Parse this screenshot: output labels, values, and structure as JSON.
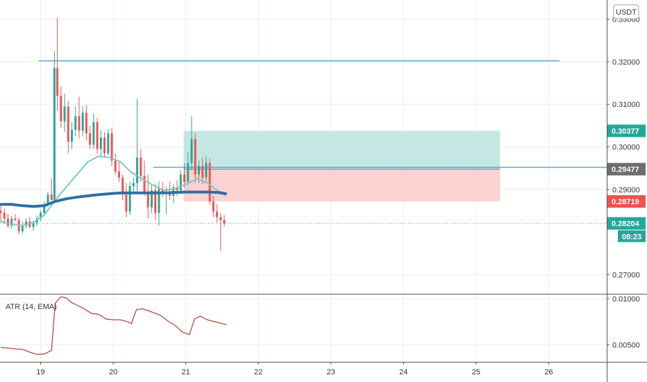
{
  "colors": {
    "up": "#26a69a",
    "down": "#ef5350",
    "ma_fast": "#7ec8c8",
    "ma_slow": "#2e6fa3",
    "atr": "#b8463e",
    "target_zone": "#b2dfdb",
    "stop_zone": "#fbc7c7",
    "level_line": "#2e8fc4",
    "grid": "#e8eef2",
    "border": "#555555"
  },
  "currency_badge": "USDT",
  "chart_data": [
    {
      "type": "candlestick",
      "y_ticks": [
        "0.33000",
        "0.32000",
        "0.31000",
        "0.30000",
        "0.29000",
        "0.27000"
      ],
      "y_tick_values": [
        0.33,
        0.32,
        0.31,
        0.3,
        0.29,
        0.27
      ],
      "ylim": [
        0.2655,
        0.3345
      ],
      "x_ticks": [
        "19",
        "20",
        "21",
        "22",
        "23",
        "24",
        "25",
        "26"
      ],
      "x_tick_values": [
        19,
        20,
        21,
        22,
        23,
        24,
        25,
        26
      ],
      "xlim": [
        18.44,
        26.8
      ],
      "price_tags": [
        {
          "label": "0.30377",
          "value": 0.30377,
          "color": "#26a69a"
        },
        {
          "label": "0.29477",
          "value": 0.29477,
          "color": "#6d6d6d"
        },
        {
          "label": "0.28719",
          "value": 0.28719,
          "color": "#ef5350"
        },
        {
          "label": "0.28204",
          "value": 0.28204,
          "color": "#26a69a"
        }
      ],
      "countdown": "08:23",
      "horizontal_levels": [
        {
          "value": 0.3202,
          "x_start": 18.97,
          "x_end": 26.15
        },
        {
          "value": 0.2952,
          "x_start": 20.55,
          "x_end": 26.8
        }
      ],
      "position_zone": {
        "x_start": 20.97,
        "x_end": 25.33,
        "entry": 0.29477,
        "target": 0.30377,
        "stop": 0.28719
      },
      "candles": [
        [
          18.45,
          0.285,
          0.2865,
          0.2823,
          0.2845
        ],
        [
          18.5,
          0.2845,
          0.2855,
          0.282,
          0.2832
        ],
        [
          18.55,
          0.2832,
          0.2843,
          0.281,
          0.2815
        ],
        [
          18.6,
          0.2815,
          0.2838,
          0.2808,
          0.2832
        ],
        [
          18.65,
          0.2832,
          0.2842,
          0.2825,
          0.2828
        ],
        [
          18.7,
          0.2828,
          0.2834,
          0.2795,
          0.2802
        ],
        [
          18.75,
          0.2802,
          0.2825,
          0.2797,
          0.2815
        ],
        [
          18.8,
          0.2815,
          0.2832,
          0.2808,
          0.2825
        ],
        [
          18.85,
          0.2825,
          0.2835,
          0.2808,
          0.2812
        ],
        [
          18.9,
          0.2812,
          0.2828,
          0.2803,
          0.2822
        ],
        [
          18.95,
          0.2822,
          0.2838,
          0.2815,
          0.2832
        ],
        [
          19.0,
          0.2832,
          0.285,
          0.2825,
          0.2845
        ],
        [
          19.05,
          0.2845,
          0.2872,
          0.284,
          0.2865
        ],
        [
          19.1,
          0.2865,
          0.2895,
          0.286,
          0.2888
        ],
        [
          19.15,
          0.2888,
          0.2925,
          0.2875,
          0.2875
        ],
        [
          19.19,
          0.2875,
          0.3225,
          0.287,
          0.3185
        ],
        [
          19.23,
          0.3185,
          0.3303,
          0.3085,
          0.312
        ],
        [
          19.28,
          0.312,
          0.3142,
          0.3045,
          0.306
        ],
        [
          19.33,
          0.306,
          0.3125,
          0.3035,
          0.3095
        ],
        [
          19.38,
          0.3095,
          0.3108,
          0.2985,
          0.3012
        ],
        [
          19.43,
          0.3012,
          0.3058,
          0.2995,
          0.304
        ],
        [
          19.48,
          0.304,
          0.3095,
          0.3025,
          0.3072
        ],
        [
          19.53,
          0.3072,
          0.3118,
          0.302,
          0.3038
        ],
        [
          19.58,
          0.3038,
          0.3095,
          0.3025,
          0.308
        ],
        [
          19.63,
          0.308,
          0.3098,
          0.3015,
          0.3032
        ],
        [
          19.68,
          0.3032,
          0.305,
          0.2995,
          0.3005
        ],
        [
          19.73,
          0.3005,
          0.3078,
          0.2995,
          0.3058
        ],
        [
          19.78,
          0.3058,
          0.3068,
          0.2985,
          0.2995
        ],
        [
          19.83,
          0.2995,
          0.3038,
          0.2978,
          0.3022
        ],
        [
          19.88,
          0.3022,
          0.3035,
          0.2975,
          0.2985
        ],
        [
          19.93,
          0.2985,
          0.3042,
          0.298,
          0.3032
        ],
        [
          19.98,
          0.3032,
          0.3045,
          0.2955,
          0.2968
        ],
        [
          20.03,
          0.2968,
          0.2985,
          0.2935,
          0.2942
        ],
        [
          20.08,
          0.2942,
          0.2968,
          0.2918,
          0.2928
        ],
        [
          20.13,
          0.2928,
          0.2935,
          0.2875,
          0.2888
        ],
        [
          20.18,
          0.2888,
          0.2915,
          0.2835,
          0.2848
        ],
        [
          20.23,
          0.2848,
          0.2918,
          0.284,
          0.2908
        ],
        [
          20.28,
          0.2908,
          0.2928,
          0.2892,
          0.2915
        ],
        [
          20.33,
          0.2915,
          0.3112,
          0.2895,
          0.2975
        ],
        [
          20.38,
          0.2975,
          0.2995,
          0.2918,
          0.2932
        ],
        [
          20.43,
          0.2932,
          0.2968,
          0.2885,
          0.2892
        ],
        [
          20.48,
          0.2892,
          0.2935,
          0.2832,
          0.2858
        ],
        [
          20.53,
          0.2858,
          0.291,
          0.2845,
          0.2898
        ],
        [
          20.58,
          0.2898,
          0.2915,
          0.2828,
          0.2845
        ],
        [
          20.63,
          0.2845,
          0.292,
          0.2815,
          0.2902
        ],
        [
          20.68,
          0.2902,
          0.2918,
          0.2882,
          0.2892
        ],
        [
          20.73,
          0.2892,
          0.2905,
          0.2842,
          0.2895
        ],
        [
          20.78,
          0.2895,
          0.2918,
          0.2875,
          0.2885
        ],
        [
          20.83,
          0.2885,
          0.2912,
          0.2868,
          0.2905
        ],
        [
          20.88,
          0.2905,
          0.2922,
          0.2885,
          0.2898
        ],
        [
          20.93,
          0.2898,
          0.2945,
          0.289,
          0.2935
        ],
        [
          20.98,
          0.2935,
          0.2962,
          0.2905,
          0.2918
        ],
        [
          21.03,
          0.2918,
          0.2988,
          0.291,
          0.2962
        ],
        [
          21.08,
          0.2962,
          0.3072,
          0.2945,
          0.3018
        ],
        [
          21.13,
          0.3018,
          0.3032,
          0.2915,
          0.2935
        ],
        [
          21.18,
          0.2935,
          0.2968,
          0.2915,
          0.2955
        ],
        [
          21.23,
          0.2955,
          0.2975,
          0.2912,
          0.2928
        ],
        [
          21.28,
          0.2928,
          0.2978,
          0.2918,
          0.2962
        ],
        [
          21.33,
          0.2962,
          0.2972,
          0.2865,
          0.2872
        ],
        [
          21.38,
          0.2872,
          0.2885,
          0.2835,
          0.2848
        ],
        [
          21.43,
          0.2848,
          0.2865,
          0.2822,
          0.2835
        ],
        [
          21.48,
          0.2835,
          0.2845,
          0.2755,
          0.2828
        ],
        [
          21.53,
          0.2828,
          0.284,
          0.2812,
          0.282
        ]
      ],
      "ma_fast": [
        [
          18.45,
          0.2825
        ],
        [
          18.6,
          0.2818
        ],
        [
          18.75,
          0.2815
        ],
        [
          18.9,
          0.2822
        ],
        [
          19.05,
          0.284
        ],
        [
          19.2,
          0.2875
        ],
        [
          19.35,
          0.2905
        ],
        [
          19.5,
          0.2935
        ],
        [
          19.65,
          0.2965
        ],
        [
          19.8,
          0.2978
        ],
        [
          19.95,
          0.2975
        ],
        [
          20.1,
          0.2965
        ],
        [
          20.25,
          0.294
        ],
        [
          20.4,
          0.2925
        ],
        [
          20.55,
          0.291
        ],
        [
          20.7,
          0.2898
        ],
        [
          20.85,
          0.2902
        ],
        [
          21.0,
          0.2912
        ],
        [
          21.15,
          0.2925
        ],
        [
          21.3,
          0.2915
        ],
        [
          21.4,
          0.2902
        ],
        [
          21.55,
          0.2885
        ]
      ],
      "ma_slow": [
        [
          18.45,
          0.2865
        ],
        [
          18.6,
          0.2865
        ],
        [
          18.75,
          0.2862
        ],
        [
          18.9,
          0.286
        ],
        [
          19.05,
          0.2862
        ],
        [
          19.2,
          0.2872
        ],
        [
          19.35,
          0.2878
        ],
        [
          19.5,
          0.2882
        ],
        [
          19.65,
          0.2885
        ],
        [
          19.8,
          0.2888
        ],
        [
          19.95,
          0.289
        ],
        [
          20.1,
          0.2892
        ],
        [
          20.25,
          0.2892
        ],
        [
          20.4,
          0.2892
        ],
        [
          20.55,
          0.2892
        ],
        [
          20.7,
          0.2892
        ],
        [
          20.85,
          0.2893
        ],
        [
          21.0,
          0.2894
        ],
        [
          21.15,
          0.2894
        ],
        [
          21.3,
          0.2894
        ],
        [
          21.45,
          0.2893
        ],
        [
          21.55,
          0.289
        ]
      ]
    },
    {
      "type": "line",
      "title": "ATR (14, EMA)",
      "y_ticks": [
        "0.01000",
        "0.00500"
      ],
      "y_tick_values": [
        0.01,
        0.005
      ],
      "ylim": [
        0.00315,
        0.01045
      ],
      "xlim": [
        18.44,
        26.8
      ],
      "values": [
        [
          18.45,
          0.0047
        ],
        [
          18.55,
          0.00465
        ],
        [
          18.65,
          0.00455
        ],
        [
          18.75,
          0.0045
        ],
        [
          18.85,
          0.0042
        ],
        [
          18.95,
          0.00395
        ],
        [
          19.05,
          0.004
        ],
        [
          19.15,
          0.0044
        ],
        [
          19.2,
          0.0095
        ],
        [
          19.28,
          0.0102
        ],
        [
          19.35,
          0.0101
        ],
        [
          19.42,
          0.0096
        ],
        [
          19.5,
          0.0093
        ],
        [
          19.6,
          0.0089
        ],
        [
          19.7,
          0.0084
        ],
        [
          19.8,
          0.0083
        ],
        [
          19.9,
          0.0078
        ],
        [
          20.0,
          0.0077
        ],
        [
          20.1,
          0.0077
        ],
        [
          20.2,
          0.0075
        ],
        [
          20.25,
          0.0073
        ],
        [
          20.32,
          0.0088
        ],
        [
          20.4,
          0.0089
        ],
        [
          20.48,
          0.0087
        ],
        [
          20.55,
          0.0085
        ],
        [
          20.65,
          0.0082
        ],
        [
          20.75,
          0.0076
        ],
        [
          20.85,
          0.0071
        ],
        [
          20.95,
          0.0064
        ],
        [
          21.05,
          0.0061
        ],
        [
          21.12,
          0.0078
        ],
        [
          21.2,
          0.0081
        ],
        [
          21.3,
          0.0077
        ],
        [
          21.4,
          0.0075
        ],
        [
          21.5,
          0.0073
        ],
        [
          21.56,
          0.0072
        ]
      ]
    }
  ]
}
